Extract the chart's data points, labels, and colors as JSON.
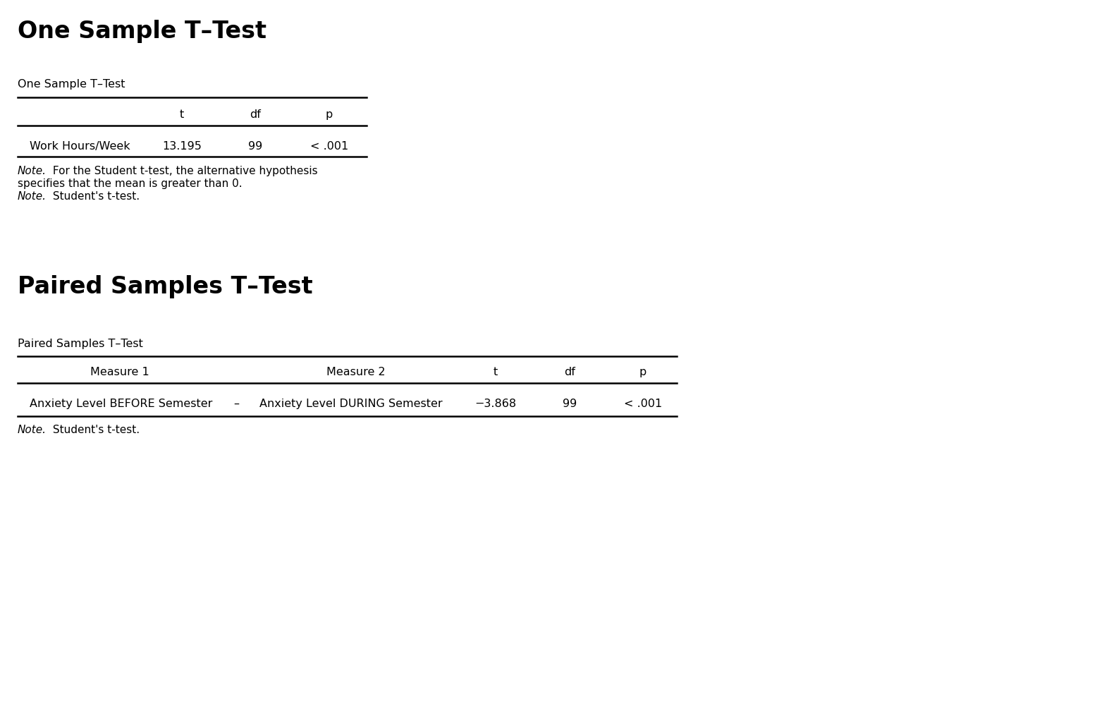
{
  "bg_color": "#ffffff",
  "fig_width": 15.56,
  "fig_height": 9.98,
  "section1_title": "One Sample T–Test",
  "section1_title_fontsize": 24,
  "section1_title_fontweight": "bold",
  "section1_table_label": "One Sample T–Test",
  "section1_table_label_fontsize": 11.5,
  "section1_headers": [
    "t",
    "df",
    "p"
  ],
  "section1_header_fontsize": 11.5,
  "section1_row_label": "Work Hours/Week",
  "section1_row_values": [
    "13.195",
    "99",
    "< .001"
  ],
  "section1_row_fontsize": 11.5,
  "section1_note1_plain": " For the Student t-test, the alternative hypothesis",
  "section1_note2": "specifies that the mean is greater than 0.",
  "section1_note3_plain": " Student's t-test.",
  "note_fontsize": 11,
  "section2_title": "Paired Samples T–Test",
  "section2_title_fontsize": 24,
  "section2_title_fontweight": "bold",
  "section2_table_label": "Paired Samples T–Test",
  "section2_table_label_fontsize": 11.5,
  "section2_headers": [
    "Measure 1",
    "Measure 2",
    "t",
    "df",
    "p"
  ],
  "section2_header_fontsize": 11.5,
  "section2_row_m1": "Anxiety Level BEFORE Semester",
  "section2_row_dash": "–",
  "section2_row_m2": "Anxiety Level DURING Semester",
  "section2_row_values": [
    "−3.868",
    "99",
    "< .001"
  ],
  "section2_row_fontsize": 11.5,
  "section2_note_plain": " Student's t-test.",
  "line_color": "#000000",
  "line_lw": 1.8
}
